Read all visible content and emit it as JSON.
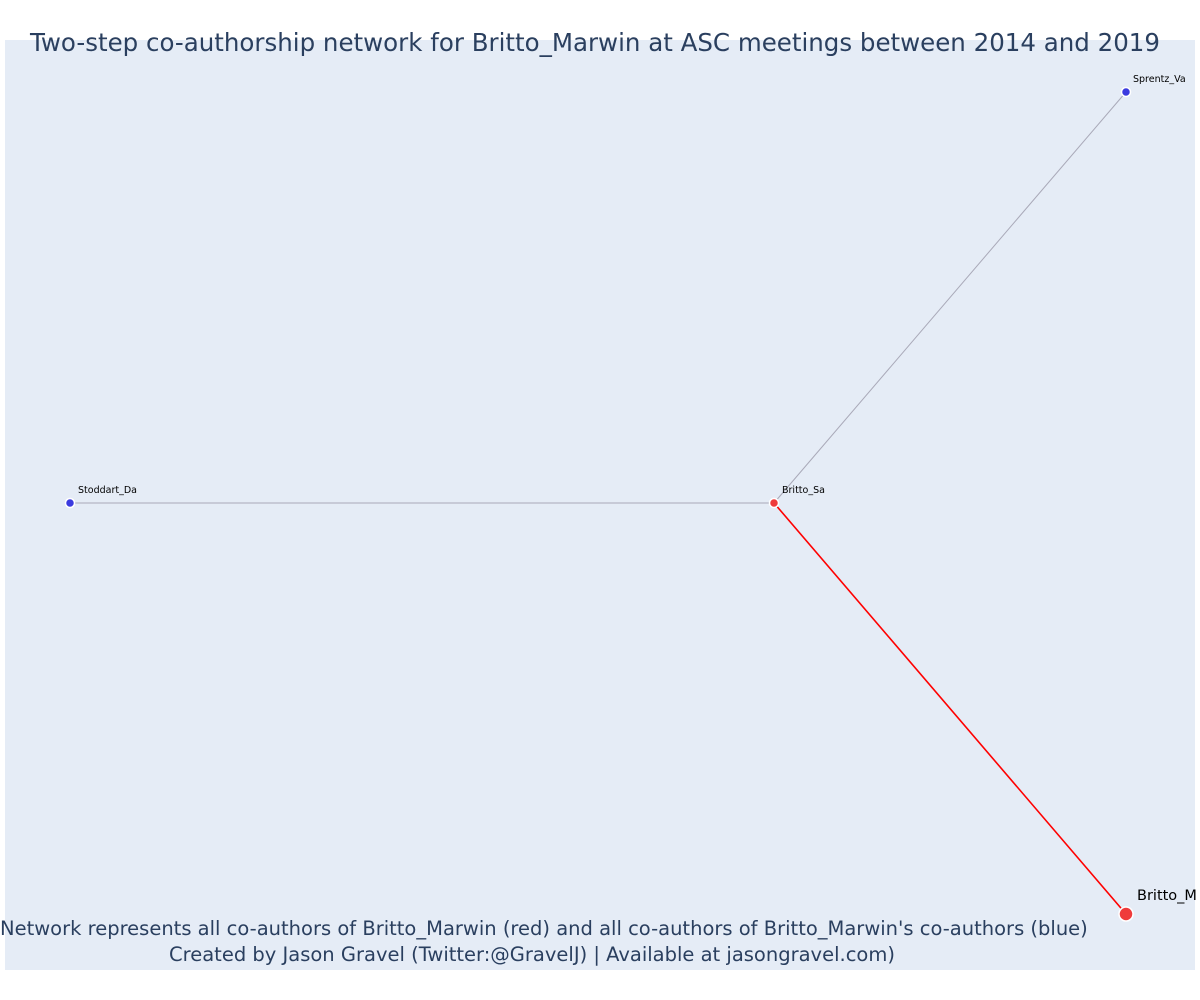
{
  "title": "Two-step co-authorship network for Britto_Marwin at ASC meetings between 2014 and 2019",
  "caption": {
    "line1": "Network represents all co-authors of Britto_Marwin (red) and all co-authors of Britto_Marwin's co-authors (blue)",
    "line2": "Created by Jason Gravel (Twitter:@GravelJ) | Available at jasongravel.com)"
  },
  "colors": {
    "background": "#e5ecf6",
    "text": "#2a3f5f",
    "first_degree": "#ef3b3b",
    "second_degree": "#3b3bdf",
    "first_degree_edge": "#ff0000",
    "second_degree_edge": "#a9a9b8"
  },
  "nodes": [
    {
      "id": "Britto_M",
      "label": "Britto_M",
      "group": "ego"
    },
    {
      "id": "Britto_Sa",
      "label": "Britto_Sa",
      "group": "first_degree"
    },
    {
      "id": "Sprentz_Va",
      "label": "Sprentz_Va",
      "group": "second_degree"
    },
    {
      "id": "Stoddart_Da",
      "label": "Stoddart_Da",
      "group": "second_degree"
    }
  ],
  "edges": [
    {
      "source": "Britto_M",
      "target": "Britto_Sa",
      "type": "first_degree"
    },
    {
      "source": "Britto_Sa",
      "target": "Sprentz_Va",
      "type": "second_degree"
    },
    {
      "source": "Britto_Sa",
      "target": "Stoddart_Da",
      "type": "second_degree"
    }
  ]
}
